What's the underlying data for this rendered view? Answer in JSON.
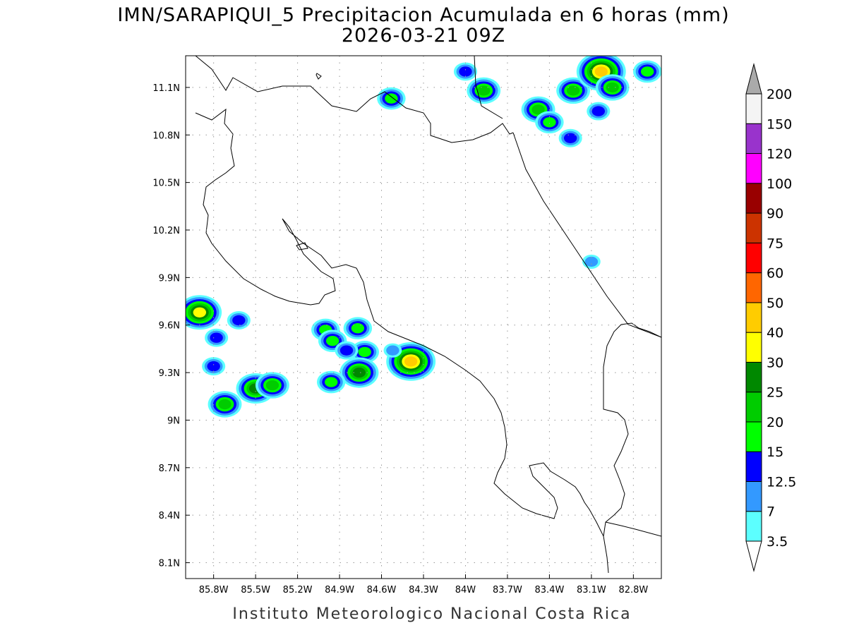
{
  "title": {
    "line1": "IMN/SARAPIQUI_5 Precipitacion Acumulada en 6 horas (mm)",
    "line2": "2026-03-21 09Z"
  },
  "footer": "Instituto Meteorologico Nacional Costa Rica",
  "axes": {
    "x_range": [
      -86.0,
      -82.6
    ],
    "y_range": [
      8.0,
      11.3
    ],
    "x_ticks": [
      {
        "value": -85.8,
        "label": "85.8W"
      },
      {
        "value": -85.5,
        "label": "85.5W"
      },
      {
        "value": -85.2,
        "label": "85.2W"
      },
      {
        "value": -84.9,
        "label": "84.9W"
      },
      {
        "value": -84.6,
        "label": "84.6W"
      },
      {
        "value": -84.3,
        "label": "84.3W"
      },
      {
        "value": -84.0,
        "label": "84W"
      },
      {
        "value": -83.7,
        "label": "83.7W"
      },
      {
        "value": -83.4,
        "label": "83.4W"
      },
      {
        "value": -83.1,
        "label": "83.1W"
      },
      {
        "value": -82.8,
        "label": "82.8W"
      }
    ],
    "y_ticks": [
      {
        "value": 11.1,
        "label": "11.1N"
      },
      {
        "value": 10.8,
        "label": "10.8N"
      },
      {
        "value": 10.5,
        "label": "10.5N"
      },
      {
        "value": 10.2,
        "label": "10.2N"
      },
      {
        "value": 9.9,
        "label": "9.9N"
      },
      {
        "value": 9.6,
        "label": "9.6N"
      },
      {
        "value": 9.3,
        "label": "9.3N"
      },
      {
        "value": 9.0,
        "label": "9N"
      },
      {
        "value": 8.7,
        "label": "8.7N"
      },
      {
        "value": 8.4,
        "label": "8.4N"
      },
      {
        "value": 8.1,
        "label": "8.1N"
      }
    ],
    "grid": true
  },
  "colorbar": {
    "units": "mm",
    "levels": [
      {
        "label": "3.5",
        "color": "#5cffff"
      },
      {
        "label": "7",
        "color": "#3399ff"
      },
      {
        "label": "12.5",
        "color": "#0000ff"
      },
      {
        "label": "15",
        "color": "#00ff00"
      },
      {
        "label": "20",
        "color": "#00cc00"
      },
      {
        "label": "25",
        "color": "#008800"
      },
      {
        "label": "30",
        "color": "#ffff00"
      },
      {
        "label": "40",
        "color": "#ffcc00"
      },
      {
        "label": "50",
        "color": "#ff6600"
      },
      {
        "label": "60",
        "color": "#ff0000"
      },
      {
        "label": "75",
        "color": "#cc3300"
      },
      {
        "label": "90",
        "color": "#990000"
      },
      {
        "label": "100",
        "color": "#ff00ff"
      },
      {
        "label": "120",
        "color": "#9933cc"
      },
      {
        "label": "150",
        "color": "#f4f4f4"
      },
      {
        "label": "200",
        "color": ""
      }
    ],
    "below_color": "#ffffff",
    "above_color": "#aaaaaa"
  },
  "chart_data": {
    "type": "heatmap",
    "variable": "6-hour accumulated precipitation (mm)",
    "cells": [
      {
        "lon": -85.9,
        "lat": 9.68,
        "max_mm": 30
      },
      {
        "lon": -85.62,
        "lat": 9.63,
        "max_mm": 12.5
      },
      {
        "lon": -85.78,
        "lat": 9.52,
        "max_mm": 12.5
      },
      {
        "lon": -85.5,
        "lat": 9.2,
        "max_mm": 25
      },
      {
        "lon": -85.72,
        "lat": 9.1,
        "max_mm": 20
      },
      {
        "lon": -85.38,
        "lat": 9.22,
        "max_mm": 20
      },
      {
        "lon": -85.8,
        "lat": 9.34,
        "max_mm": 12.5
      },
      {
        "lon": -85.0,
        "lat": 9.57,
        "max_mm": 15
      },
      {
        "lon": -84.95,
        "lat": 9.5,
        "max_mm": 15
      },
      {
        "lon": -84.77,
        "lat": 9.58,
        "max_mm": 15
      },
      {
        "lon": -84.72,
        "lat": 9.43,
        "max_mm": 15
      },
      {
        "lon": -84.76,
        "lat": 9.3,
        "max_mm": 25
      },
      {
        "lon": -84.85,
        "lat": 9.44,
        "max_mm": 12.5
      },
      {
        "lon": -84.96,
        "lat": 9.24,
        "max_mm": 15
      },
      {
        "lon": -84.39,
        "lat": 9.37,
        "max_mm": 40
      },
      {
        "lon": -84.52,
        "lat": 9.44,
        "max_mm": 7
      },
      {
        "lon": -84.53,
        "lat": 11.03,
        "max_mm": 15
      },
      {
        "lon": -84.0,
        "lat": 11.2,
        "max_mm": 12.5
      },
      {
        "lon": -83.87,
        "lat": 11.08,
        "max_mm": 20
      },
      {
        "lon": -83.48,
        "lat": 10.96,
        "max_mm": 20
      },
      {
        "lon": -83.23,
        "lat": 11.08,
        "max_mm": 20
      },
      {
        "lon": -83.03,
        "lat": 11.2,
        "max_mm": 40
      },
      {
        "lon": -82.95,
        "lat": 11.1,
        "max_mm": 20
      },
      {
        "lon": -82.7,
        "lat": 11.2,
        "max_mm": 15
      },
      {
        "lon": -83.05,
        "lat": 10.95,
        "max_mm": 12.5
      },
      {
        "lon": -83.4,
        "lat": 10.88,
        "max_mm": 15
      },
      {
        "lon": -83.25,
        "lat": 10.78,
        "max_mm": 12.5
      },
      {
        "lon": -83.1,
        "lat": 10.0,
        "max_mm": 7
      }
    ]
  }
}
